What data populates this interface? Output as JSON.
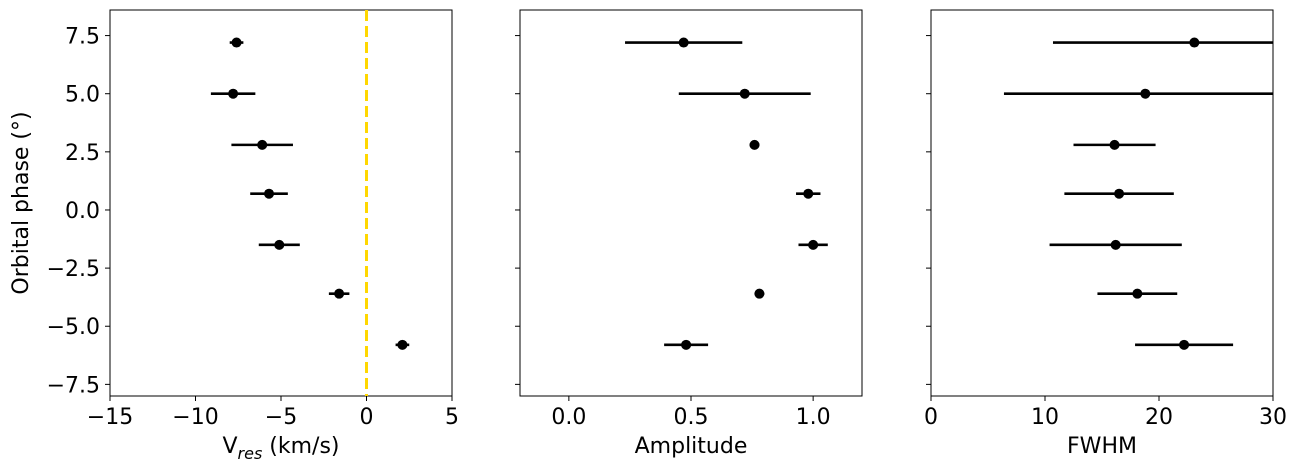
{
  "colors": {
    "marker": "#000000",
    "errorbar": "#000000",
    "reference_line": "#FFD700"
  },
  "chart_data": [
    {
      "type": "scatter",
      "title": "",
      "xlabel": "V",
      "xlabel_subscript": "res",
      "xlabel_suffix": " (km/s)",
      "ylabel": "Orbital phase (°)",
      "xlim": [
        -15,
        5
      ],
      "ylim": [
        -8,
        8.6
      ],
      "xticks": [
        -15,
        -10,
        -5,
        0,
        5
      ],
      "xtick_labels": [
        "−15",
        "−10",
        "−5",
        "0",
        "5"
      ],
      "yticks": [
        -7.5,
        -5.0,
        -2.5,
        0.0,
        2.5,
        5.0,
        7.5
      ],
      "ytick_labels": [
        "−7.5",
        "−5.0",
        "−2.5",
        "0.0",
        "2.5",
        "5.0",
        "7.5"
      ],
      "show_ytick_labels": true,
      "reference_line": {
        "x": 0,
        "style": "dashed",
        "color": "#FFD700"
      },
      "points": [
        {
          "y": 7.2,
          "x": -7.6,
          "xerr_low": 0.4,
          "xerr_high": 0.4
        },
        {
          "y": 5.0,
          "x": -7.8,
          "xerr_low": 1.3,
          "xerr_high": 1.3
        },
        {
          "y": 2.8,
          "x": -6.1,
          "xerr_low": 1.8,
          "xerr_high": 1.8
        },
        {
          "y": 0.7,
          "x": -5.7,
          "xerr_low": 1.1,
          "xerr_high": 1.1
        },
        {
          "y": -1.5,
          "x": -5.1,
          "xerr_low": 1.2,
          "xerr_high": 1.2
        },
        {
          "y": -3.6,
          "x": -1.6,
          "xerr_low": 0.6,
          "xerr_high": 0.6
        },
        {
          "y": -5.8,
          "x": 2.1,
          "xerr_low": 0.4,
          "xerr_high": 0.4
        }
      ]
    },
    {
      "type": "scatter",
      "title": "",
      "xlabel": "Amplitude",
      "ylabel": "",
      "xlim": [
        -0.2,
        1.2
      ],
      "ylim": [
        -8,
        8.6
      ],
      "xticks": [
        0.0,
        0.5,
        1.0
      ],
      "xtick_labels": [
        "0.0",
        "0.5",
        "1.0"
      ],
      "yticks": [
        -7.5,
        -5.0,
        -2.5,
        0.0,
        2.5,
        5.0,
        7.5
      ],
      "show_ytick_labels": false,
      "points": [
        {
          "y": 7.2,
          "x": 0.47,
          "xerr_low": 0.24,
          "xerr_high": 0.24
        },
        {
          "y": 5.0,
          "x": 0.72,
          "xerr_low": 0.27,
          "xerr_high": 0.27
        },
        {
          "y": 2.8,
          "x": 0.76,
          "xerr_low": 0.02,
          "xerr_high": 0.02
        },
        {
          "y": 0.7,
          "x": 0.98,
          "xerr_low": 0.05,
          "xerr_high": 0.05
        },
        {
          "y": -1.5,
          "x": 1.0,
          "xerr_low": 0.06,
          "xerr_high": 0.06
        },
        {
          "y": -3.6,
          "x": 0.78,
          "xerr_low": 0.02,
          "xerr_high": 0.02
        },
        {
          "y": -5.8,
          "x": 0.48,
          "xerr_low": 0.09,
          "xerr_high": 0.09
        }
      ]
    },
    {
      "type": "scatter",
      "title": "",
      "xlabel": "FWHM",
      "ylabel": "",
      "xlim": [
        0,
        30
      ],
      "ylim": [
        -8,
        8.6
      ],
      "xticks": [
        0,
        10,
        20,
        30
      ],
      "xtick_labels": [
        "0",
        "10",
        "20",
        "30"
      ],
      "yticks": [
        -7.5,
        -5.0,
        -2.5,
        0.0,
        2.5,
        5.0,
        7.5
      ],
      "show_ytick_labels": false,
      "points": [
        {
          "y": 7.2,
          "x": 23.1,
          "xerr_low": 12.4,
          "xerr_high": 12.4
        },
        {
          "y": 5.0,
          "x": 18.8,
          "xerr_low": 12.4,
          "xerr_high": 12.4
        },
        {
          "y": 2.8,
          "x": 16.1,
          "xerr_low": 3.6,
          "xerr_high": 3.6
        },
        {
          "y": 0.7,
          "x": 16.5,
          "xerr_low": 4.8,
          "xerr_high": 4.8
        },
        {
          "y": -1.5,
          "x": 16.2,
          "xerr_low": 5.8,
          "xerr_high": 5.8
        },
        {
          "y": -3.6,
          "x": 18.1,
          "xerr_low": 3.5,
          "xerr_high": 3.5
        },
        {
          "y": -5.8,
          "x": 22.2,
          "xerr_low": 4.3,
          "xerr_high": 4.3
        }
      ]
    }
  ]
}
